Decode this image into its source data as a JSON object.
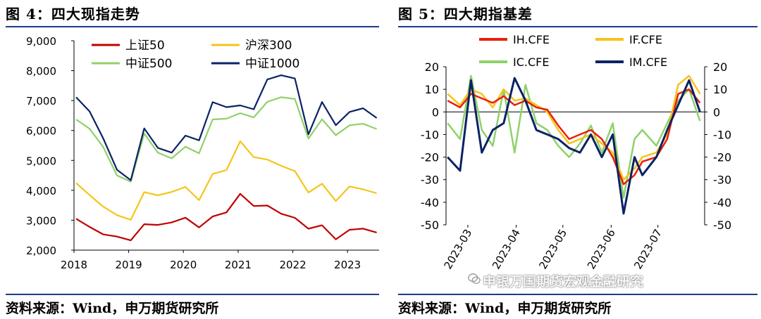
{
  "left": {
    "title": "图 4：四大现指走势",
    "source": "资料来源：Wind，申万期货研究所"
  },
  "right": {
    "title": "图 5：四大期指基差",
    "source": "资料来源：Wind，申万期货研究所"
  },
  "watermark": "申银万国期货宏观金融研究",
  "chart_data": [
    {
      "type": "line",
      "title": "",
      "xlabel": "",
      "ylabel": "",
      "ylim": [
        2000,
        9000
      ],
      "xlim": [
        "2018-01-01",
        "2023-07-31"
      ],
      "yticks": [
        "2,000",
        "3,000",
        "4,000",
        "5,000",
        "6,000",
        "7,000",
        "8,000",
        "9,000"
      ],
      "xticks": [
        "2018",
        "2019",
        "2020",
        "2021",
        "2022",
        "2023"
      ],
      "legend": "top-left, two columns",
      "grid": false,
      "colors": {
        "上证50": "#c00000",
        "沪深300": "#f5c518",
        "中证500": "#8fd16a",
        "中证1000": "#0b2265"
      },
      "series": [
        {
          "name": "上证50",
          "x": [
            "2018-01",
            "2018-04",
            "2018-07",
            "2018-10",
            "2019-01",
            "2019-04",
            "2019-07",
            "2019-10",
            "2020-01",
            "2020-04",
            "2020-07",
            "2020-10",
            "2021-01",
            "2021-04",
            "2021-07",
            "2021-10",
            "2022-01",
            "2022-04",
            "2022-07",
            "2022-10",
            "2023-01",
            "2023-04",
            "2023-07"
          ],
          "values": [
            3050,
            2750,
            2500,
            2450,
            2350,
            2900,
            2850,
            2900,
            3050,
            2750,
            3150,
            3300,
            3900,
            3450,
            3450,
            3200,
            3100,
            2750,
            2850,
            2350,
            2650,
            2700,
            2600
          ]
        },
        {
          "name": "沪深300",
          "x": [
            "2018-01",
            "2018-04",
            "2018-07",
            "2018-10",
            "2019-01",
            "2019-04",
            "2019-07",
            "2019-10",
            "2020-01",
            "2020-04",
            "2020-07",
            "2020-10",
            "2021-01",
            "2021-04",
            "2021-07",
            "2021-10",
            "2022-01",
            "2022-04",
            "2022-07",
            "2022-10",
            "2023-01",
            "2023-04",
            "2023-07"
          ],
          "values": [
            4200,
            3800,
            3450,
            3200,
            3050,
            3950,
            3800,
            3900,
            4100,
            3700,
            4600,
            4700,
            5600,
            5050,
            5000,
            4850,
            4700,
            3950,
            4200,
            3600,
            4100,
            4050,
            3950
          ]
        },
        {
          "name": "中证500",
          "x": [
            "2018-01",
            "2018-04",
            "2018-07",
            "2018-10",
            "2019-01",
            "2019-04",
            "2019-07",
            "2019-10",
            "2020-01",
            "2020-04",
            "2020-07",
            "2020-10",
            "2021-01",
            "2021-04",
            "2021-07",
            "2021-10",
            "2022-01",
            "2022-04",
            "2022-07",
            "2022-10",
            "2023-01",
            "2023-04",
            "2023-07"
          ],
          "values": [
            6300,
            6050,
            5500,
            4550,
            4300,
            5850,
            5200,
            5050,
            5500,
            5300,
            6400,
            6350,
            6500,
            6400,
            7000,
            7200,
            7100,
            5700,
            6300,
            5800,
            6200,
            6300,
            6100
          ]
        },
        {
          "name": "中证1000",
          "x": [
            "2018-01",
            "2018-04",
            "2018-07",
            "2018-10",
            "2019-01",
            "2019-04",
            "2019-07",
            "2019-10",
            "2020-01",
            "2020-04",
            "2020-07",
            "2020-10",
            "2021-01",
            "2021-04",
            "2021-07",
            "2021-10",
            "2022-01",
            "2022-04",
            "2022-07",
            "2022-10",
            "2023-01",
            "2023-04",
            "2023-07"
          ],
          "values": [
            7100,
            6700,
            5800,
            4700,
            4300,
            6000,
            5400,
            5300,
            5900,
            5700,
            6900,
            6700,
            6800,
            6750,
            7800,
            7900,
            7700,
            5800,
            6900,
            6200,
            6700,
            6800,
            6400
          ]
        }
      ]
    },
    {
      "type": "line",
      "title": "",
      "xlabel": "",
      "ylabel": "",
      "ylim": [
        -50,
        20
      ],
      "y2lim": [
        -50,
        20
      ],
      "xlim": [
        "2023-02-15",
        "2023-07-31"
      ],
      "yticks": [
        "-50",
        "-40",
        "-30",
        "-20",
        "-10",
        "0",
        "10",
        "20"
      ],
      "xticks": [
        "2023-03",
        "2023-04",
        "2023-05",
        "2023-06",
        "2023-07"
      ],
      "legend": "top, two columns",
      "grid": false,
      "colors": {
        "IH.CFE": "#e8200e",
        "IF.CFE": "#f5c518",
        "IC.CFE": "#8fd16a",
        "IM.CFE": "#0b2265"
      },
      "series": [
        {
          "name": "IH.CFE",
          "x": [
            "2023-02-16",
            "2023-02-24",
            "2023-03-03",
            "2023-03-10",
            "2023-03-17",
            "2023-03-24",
            "2023-03-31",
            "2023-04-07",
            "2023-04-14",
            "2023-04-21",
            "2023-04-28",
            "2023-05-05",
            "2023-05-12",
            "2023-05-19",
            "2023-05-26",
            "2023-06-02",
            "2023-06-09",
            "2023-06-16",
            "2023-06-21",
            "2023-06-30",
            "2023-07-07",
            "2023-07-14",
            "2023-07-21",
            "2023-07-28"
          ],
          "values": [
            5,
            2,
            8,
            6,
            4,
            7,
            3,
            5,
            2,
            1,
            -6,
            -12,
            -10,
            -8,
            -12,
            -20,
            -32,
            -28,
            -22,
            -20,
            -12,
            8,
            10,
            4
          ]
        },
        {
          "name": "IF.CFE",
          "x": [
            "2023-02-16",
            "2023-02-24",
            "2023-03-03",
            "2023-03-10",
            "2023-03-17",
            "2023-03-24",
            "2023-03-31",
            "2023-04-07",
            "2023-04-14",
            "2023-04-21",
            "2023-04-28",
            "2023-05-05",
            "2023-05-12",
            "2023-05-19",
            "2023-05-26",
            "2023-06-02",
            "2023-06-09",
            "2023-06-16",
            "2023-06-21",
            "2023-06-30",
            "2023-07-07",
            "2023-07-14",
            "2023-07-21",
            "2023-07-28"
          ],
          "values": [
            8,
            3,
            10,
            8,
            2,
            10,
            5,
            6,
            3,
            0,
            -8,
            -14,
            -12,
            -10,
            -14,
            -18,
            -30,
            -25,
            -20,
            -18,
            -10,
            12,
            16,
            8
          ]
        },
        {
          "name": "IC.CFE",
          "x": [
            "2023-02-16",
            "2023-02-24",
            "2023-03-03",
            "2023-03-10",
            "2023-03-17",
            "2023-03-24",
            "2023-03-31",
            "2023-04-07",
            "2023-04-14",
            "2023-04-21",
            "2023-04-28",
            "2023-05-05",
            "2023-05-12",
            "2023-05-19",
            "2023-05-26",
            "2023-06-02",
            "2023-06-09",
            "2023-06-16",
            "2023-06-21",
            "2023-06-30",
            "2023-07-07",
            "2023-07-14",
            "2023-07-21",
            "2023-07-28"
          ],
          "values": [
            -5,
            -12,
            16,
            -8,
            -15,
            10,
            -18,
            12,
            -5,
            -8,
            -15,
            -20,
            -14,
            -6,
            -18,
            -5,
            -38,
            -12,
            -8,
            -15,
            -5,
            5,
            10,
            -4
          ]
        },
        {
          "name": "IM.CFE",
          "x": [
            "2023-02-16",
            "2023-02-24",
            "2023-03-03",
            "2023-03-10",
            "2023-03-17",
            "2023-03-24",
            "2023-03-31",
            "2023-04-07",
            "2023-04-14",
            "2023-04-21",
            "2023-04-28",
            "2023-05-05",
            "2023-05-12",
            "2023-05-19",
            "2023-05-26",
            "2023-06-02",
            "2023-06-09",
            "2023-06-16",
            "2023-06-21",
            "2023-06-30",
            "2023-07-07",
            "2023-07-14",
            "2023-07-21",
            "2023-07-28"
          ],
          "values": [
            -20,
            -26,
            14,
            -18,
            -8,
            -5,
            15,
            5,
            -8,
            -10,
            -12,
            -16,
            -18,
            -10,
            -20,
            -10,
            -45,
            -20,
            -28,
            -20,
            -8,
            3,
            14,
            0
          ]
        }
      ]
    }
  ]
}
